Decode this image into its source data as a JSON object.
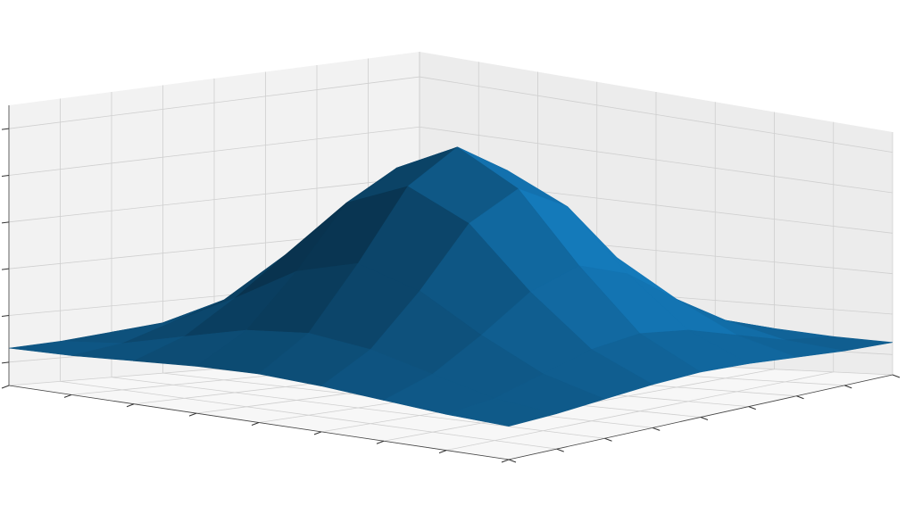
{
  "chart_data": {
    "type": "surface",
    "color": "#0f5a8a",
    "grid": true,
    "x": [
      -4,
      -3,
      -2,
      -1,
      0,
      1,
      2,
      3,
      4
    ],
    "y": [
      -4,
      -3,
      -2,
      -1,
      0,
      1,
      2,
      3,
      4
    ],
    "z": [
      [
        0.06,
        0.07,
        0.09,
        0.11,
        0.12,
        0.11,
        0.09,
        0.07,
        0.06
      ],
      [
        0.07,
        0.1,
        0.17,
        0.24,
        0.27,
        0.24,
        0.17,
        0.1,
        0.07
      ],
      [
        0.09,
        0.17,
        0.31,
        0.47,
        0.55,
        0.47,
        0.31,
        0.17,
        0.09
      ],
      [
        0.11,
        0.24,
        0.47,
        0.74,
        0.86,
        0.74,
        0.47,
        0.24,
        0.11
      ],
      [
        0.12,
        0.27,
        0.55,
        0.86,
        1.0,
        0.86,
        0.55,
        0.27,
        0.12
      ],
      [
        0.11,
        0.24,
        0.47,
        0.74,
        0.86,
        0.74,
        0.47,
        0.24,
        0.11
      ],
      [
        0.09,
        0.17,
        0.31,
        0.47,
        0.55,
        0.47,
        0.31,
        0.17,
        0.09
      ],
      [
        0.07,
        0.1,
        0.17,
        0.24,
        0.27,
        0.24,
        0.17,
        0.1,
        0.07
      ],
      [
        0.06,
        0.07,
        0.09,
        0.11,
        0.12,
        0.11,
        0.09,
        0.07,
        0.06
      ]
    ],
    "xlim": [
      -4,
      4
    ],
    "ylim": [
      -4,
      4
    ],
    "zlim": [
      -0.1,
      1.1
    ],
    "xticks": [
      -4,
      -3,
      -2,
      -1,
      0,
      1,
      2,
      3,
      4
    ],
    "yticks": [
      -4,
      -3,
      -2,
      -1,
      0,
      1,
      2,
      3,
      4
    ],
    "zticks": [
      0,
      0.2,
      0.4,
      0.6,
      0.8,
      1.0
    ]
  }
}
